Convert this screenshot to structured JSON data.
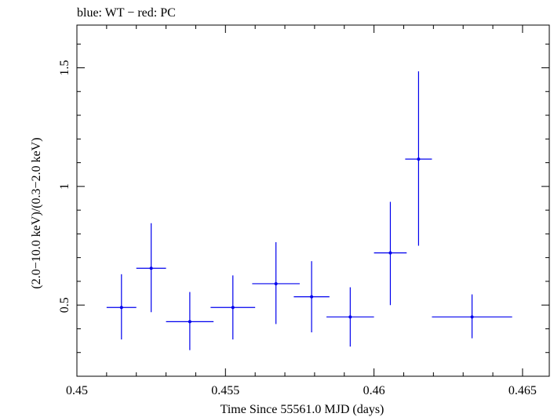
{
  "chart_data": {
    "type": "scatter",
    "title": "blue: WT − red: PC",
    "xlabel": "Time Since 55561.0 MJD (days)",
    "ylabel": "(2.0−10.0 keV)/(0.3−2.0 keV)",
    "xlim": [
      0.45,
      0.4659
    ],
    "ylim": [
      0.2,
      1.68
    ],
    "x_ticks": [
      {
        "value": 0.45,
        "label": "0.45"
      },
      {
        "value": 0.455,
        "label": "0.455"
      },
      {
        "value": 0.46,
        "label": "0.46"
      },
      {
        "value": 0.465,
        "label": "0.465"
      }
    ],
    "y_ticks": [
      {
        "value": 0.5,
        "label": "0.5"
      },
      {
        "value": 1.0,
        "label": "1"
      },
      {
        "value": 1.5,
        "label": "1.5"
      }
    ],
    "grid": false,
    "color": "#0000ee",
    "series": [
      {
        "name": "WT",
        "points": [
          {
            "x": 0.4515,
            "y": 0.49,
            "xerr": 0.0005,
            "ylo": 0.355,
            "yhi": 0.63
          },
          {
            "x": 0.4525,
            "y": 0.655,
            "xerr": 0.0005,
            "ylo": 0.47,
            "yhi": 0.845
          },
          {
            "x": 0.4538,
            "y": 0.43,
            "xerr": 0.0008,
            "ylo": 0.31,
            "yhi": 0.555
          },
          {
            "x": 0.45525,
            "y": 0.49,
            "xerr": 0.00075,
            "ylo": 0.355,
            "yhi": 0.625
          },
          {
            "x": 0.4567,
            "y": 0.59,
            "xerr": 0.0008,
            "ylo": 0.42,
            "yhi": 0.765
          },
          {
            "x": 0.4579,
            "y": 0.535,
            "xerr": 0.0006,
            "ylo": 0.385,
            "yhi": 0.685
          },
          {
            "x": 0.4592,
            "y": 0.45,
            "xerr": 0.0008,
            "ylo": 0.325,
            "yhi": 0.575
          },
          {
            "x": 0.46055,
            "y": 0.72,
            "xerr": 0.00055,
            "ylo": 0.5,
            "yhi": 0.935
          },
          {
            "x": 0.4615,
            "y": 1.115,
            "xerr": 0.00045,
            "ylo": 0.75,
            "yhi": 1.485
          },
          {
            "x": 0.4633,
            "y": 0.45,
            "xerr": 0.00135,
            "ylo": 0.36,
            "yhi": 0.545
          }
        ]
      }
    ]
  }
}
